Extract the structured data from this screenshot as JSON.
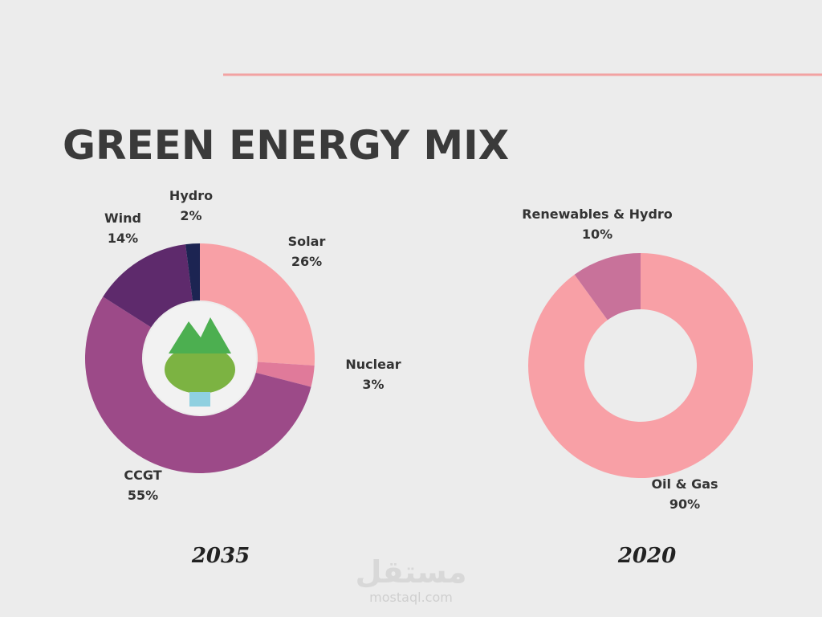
{
  "title": "GREEN ENERGY MIX",
  "chart_data": [
    {
      "type": "donut",
      "subtitle": "2035",
      "categories": [
        "Solar",
        "Nuclear",
        "CCGT",
        "Wind",
        "Hydro"
      ],
      "values": [
        26,
        3,
        55,
        14,
        2
      ],
      "value_labels": [
        "26%",
        "3%",
        "55%",
        "14%",
        "2%"
      ],
      "colors": [
        "#f8a0a6",
        "#e07a9a",
        "#9c4a88",
        "#5e2a6c",
        "#1c2452"
      ]
    },
    {
      "type": "donut",
      "subtitle": "2020",
      "categories": [
        "Oil & Gas",
        "Renewables & Hydro"
      ],
      "values": [
        90,
        10
      ],
      "value_labels": [
        "90%",
        "10%"
      ],
      "colors": [
        "#f8a0a6",
        "#c8729a"
      ]
    }
  ],
  "watermark": {
    "arabic": "مستقل",
    "url": "mostaql.com"
  }
}
